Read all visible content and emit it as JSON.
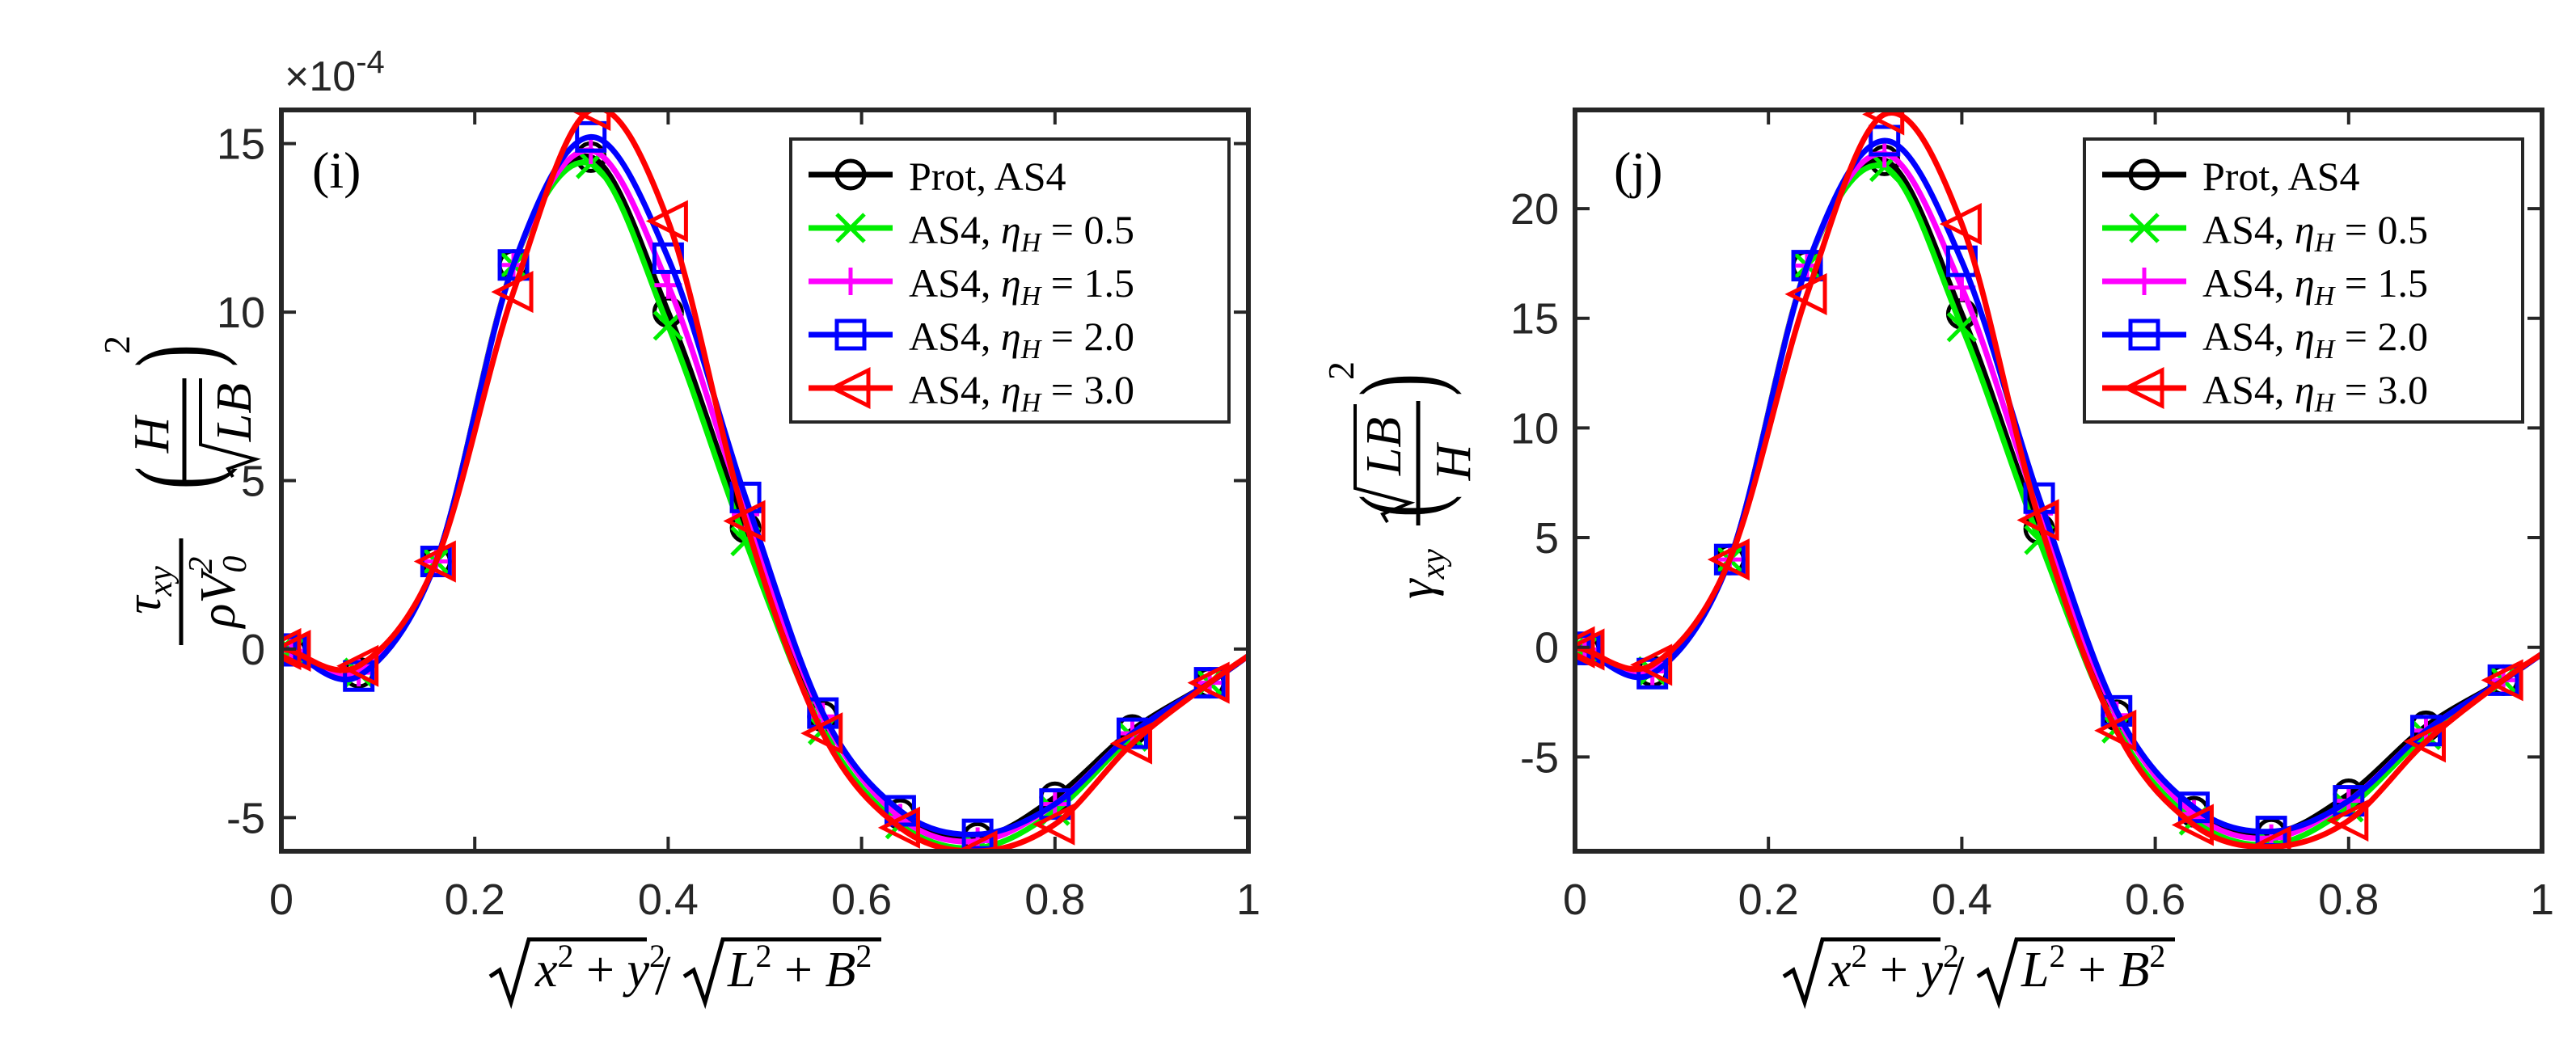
{
  "chart_data": [
    {
      "type": "line",
      "panel": "left",
      "panel_label": "(i)",
      "exponent_label": "×10",
      "exponent_power": "-4",
      "xlim": [
        0,
        1
      ],
      "ylim": [
        -6,
        16
      ],
      "xticks": [
        0,
        0.2,
        0.4,
        0.6,
        0.8,
        1
      ],
      "xtick_labels": [
        "0",
        "0.2",
        "0.4",
        "0.6",
        "0.8",
        "1"
      ],
      "yticks": [
        -5,
        0,
        5,
        10,
        15
      ],
      "ytick_labels": [
        "-5",
        "0",
        "5",
        "10",
        "15"
      ],
      "xlabel": "√(x² + y²) / √(L² + B²)",
      "ylabel": "τxy / (ρV0²) · (H / √LB)²",
      "legend_position": "top-right",
      "grid": false,
      "series": [
        {
          "name": "Prot, AS4",
          "label_text": "Prot, AS4",
          "color": "#000000",
          "marker": "circle",
          "x": [
            0,
            0.01,
            0.08,
            0.16,
            0.24,
            0.32,
            0.4,
            0.48,
            0.56,
            0.64,
            0.72,
            0.8,
            0.88,
            0.96,
            1.0
          ],
          "y": [
            0,
            -0.05,
            -0.7,
            2.6,
            11.4,
            14.6,
            10.0,
            3.6,
            -2.0,
            -4.9,
            -5.6,
            -4.4,
            -2.4,
            -1.0,
            -0.2
          ]
        },
        {
          "name": "AS4, ηH = 0.5",
          "label_text": "AS4, ",
          "eta_text": "η",
          "eta_sub": "H",
          "eq_text": " = 0.5",
          "color": "#00ee00",
          "marker": "x",
          "x": [
            0,
            0.01,
            0.08,
            0.16,
            0.24,
            0.32,
            0.4,
            0.48,
            0.56,
            0.64,
            0.72,
            0.8,
            0.88,
            0.96,
            1.0
          ],
          "y": [
            0,
            -0.05,
            -0.7,
            2.6,
            11.4,
            14.4,
            9.6,
            3.2,
            -2.4,
            -5.2,
            -5.9,
            -4.8,
            -2.6,
            -1.0,
            -0.2
          ]
        },
        {
          "name": "AS4, ηH = 1.5",
          "label_text": "AS4, ",
          "eta_text": "η",
          "eta_sub": "H",
          "eq_text": " = 1.5",
          "color": "#ff00ff",
          "marker": "plus",
          "x": [
            0,
            0.01,
            0.08,
            0.16,
            0.24,
            0.32,
            0.4,
            0.48,
            0.56,
            0.64,
            0.72,
            0.8,
            0.88,
            0.96,
            1.0
          ],
          "y": [
            0,
            -0.05,
            -0.7,
            2.6,
            11.4,
            14.8,
            10.8,
            4.0,
            -2.0,
            -5.0,
            -5.7,
            -4.6,
            -2.5,
            -1.0,
            -0.2
          ]
        },
        {
          "name": "AS4, ηH = 2.0",
          "label_text": "AS4, ",
          "eta_text": "η",
          "eta_sub": "H",
          "eq_text": " = 2.0",
          "color": "#0000ff",
          "marker": "square",
          "x": [
            0,
            0.01,
            0.08,
            0.16,
            0.24,
            0.32,
            0.4,
            0.48,
            0.56,
            0.64,
            0.72,
            0.8,
            0.88,
            0.96,
            1.0
          ],
          "y": [
            0,
            -0.05,
            -0.8,
            2.6,
            11.4,
            15.2,
            11.6,
            4.5,
            -1.9,
            -4.8,
            -5.5,
            -4.6,
            -2.5,
            -1.0,
            -0.2
          ]
        },
        {
          "name": "AS4, ηH = 3.0",
          "label_text": "AS4, ",
          "eta_text": "η",
          "eta_sub": "H",
          "eq_text": " = 3.0",
          "color": "#ff0000",
          "marker": "triangle-left",
          "x": [
            0,
            0.01,
            0.08,
            0.16,
            0.24,
            0.32,
            0.4,
            0.48,
            0.56,
            0.64,
            0.72,
            0.8,
            0.88,
            0.96,
            1.0
          ],
          "y": [
            0,
            -0.05,
            -0.5,
            2.6,
            10.6,
            16.0,
            12.7,
            3.8,
            -2.5,
            -5.3,
            -6.0,
            -5.2,
            -2.8,
            -1.0,
            -0.2
          ]
        }
      ]
    },
    {
      "type": "line",
      "panel": "right",
      "panel_label": "(j)",
      "xlim": [
        0,
        1
      ],
      "ylim": [
        -9.3,
        24.5
      ],
      "xticks": [
        0,
        0.2,
        0.4,
        0.6,
        0.8,
        1
      ],
      "xtick_labels": [
        "0",
        "0.2",
        "0.4",
        "0.6",
        "0.8",
        "1"
      ],
      "yticks": [
        -5,
        0,
        5,
        10,
        15,
        20
      ],
      "ytick_labels": [
        "-5",
        "0",
        "5",
        "10",
        "15",
        "20"
      ],
      "xlabel": "√(x² + y²) / √(L² + B²)",
      "ylabel": "γxy · (√LB / H)²",
      "legend_position": "top-right",
      "grid": false,
      "series": [
        {
          "name": "Prot, AS4",
          "label_text": "Prot, AS4",
          "color": "#000000",
          "marker": "circle",
          "x": [
            0,
            0.01,
            0.08,
            0.16,
            0.24,
            0.32,
            0.4,
            0.48,
            0.56,
            0.64,
            0.72,
            0.8,
            0.88,
            0.96,
            1.0
          ],
          "y": [
            0,
            -0.1,
            -1.1,
            4.0,
            17.4,
            22.2,
            15.2,
            5.4,
            -3.1,
            -7.5,
            -8.5,
            -6.7,
            -3.6,
            -1.5,
            -0.3
          ]
        },
        {
          "name": "AS4, ηH = 0.5",
          "label_text": "AS4, ",
          "eta_text": "η",
          "eta_sub": "H",
          "eq_text": " = 0.5",
          "color": "#00ee00",
          "marker": "x",
          "x": [
            0,
            0.01,
            0.08,
            0.16,
            0.24,
            0.32,
            0.4,
            0.48,
            0.56,
            0.64,
            0.72,
            0.8,
            0.88,
            0.96,
            1.0
          ],
          "y": [
            0,
            -0.1,
            -1.1,
            4.0,
            17.4,
            21.9,
            14.6,
            4.9,
            -3.7,
            -7.9,
            -9.0,
            -7.3,
            -4.0,
            -1.5,
            -0.3
          ]
        },
        {
          "name": "AS4, ηH = 1.5",
          "label_text": "AS4, ",
          "eta_text": "η",
          "eta_sub": "H",
          "eq_text": " = 1.5",
          "color": "#ff00ff",
          "marker": "plus",
          "x": [
            0,
            0.01,
            0.08,
            0.16,
            0.24,
            0.32,
            0.4,
            0.48,
            0.56,
            0.64,
            0.72,
            0.8,
            0.88,
            0.96,
            1.0
          ],
          "y": [
            0,
            -0.1,
            -1.1,
            4.0,
            17.4,
            22.5,
            16.4,
            6.1,
            -3.1,
            -7.6,
            -8.7,
            -7.0,
            -3.8,
            -1.5,
            -0.3
          ]
        },
        {
          "name": "AS4, ηH = 2.0",
          "label_text": "AS4, ",
          "eta_text": "η",
          "eta_sub": "H",
          "eq_text": " = 2.0",
          "color": "#0000ff",
          "marker": "square",
          "x": [
            0,
            0.01,
            0.08,
            0.16,
            0.24,
            0.32,
            0.4,
            0.48,
            0.56,
            0.64,
            0.72,
            0.8,
            0.88,
            0.96,
            1.0
          ],
          "y": [
            0,
            -0.1,
            -1.2,
            4.0,
            17.4,
            23.1,
            17.6,
            6.8,
            -2.9,
            -7.3,
            -8.4,
            -7.0,
            -3.8,
            -1.5,
            -0.3
          ]
        },
        {
          "name": "AS4, ηH = 3.0",
          "label_text": "AS4, ",
          "eta_text": "η",
          "eta_sub": "H",
          "eq_text": " = 3.0",
          "color": "#ff0000",
          "marker": "triangle-left",
          "x": [
            0,
            0.01,
            0.08,
            0.16,
            0.24,
            0.32,
            0.4,
            0.48,
            0.56,
            0.64,
            0.72,
            0.8,
            0.88,
            0.96,
            1.0
          ],
          "y": [
            0,
            -0.1,
            -0.8,
            4.0,
            16.1,
            24.3,
            19.3,
            5.8,
            -3.8,
            -8.1,
            -9.1,
            -7.9,
            -4.3,
            -1.5,
            -0.3
          ]
        }
      ]
    }
  ]
}
